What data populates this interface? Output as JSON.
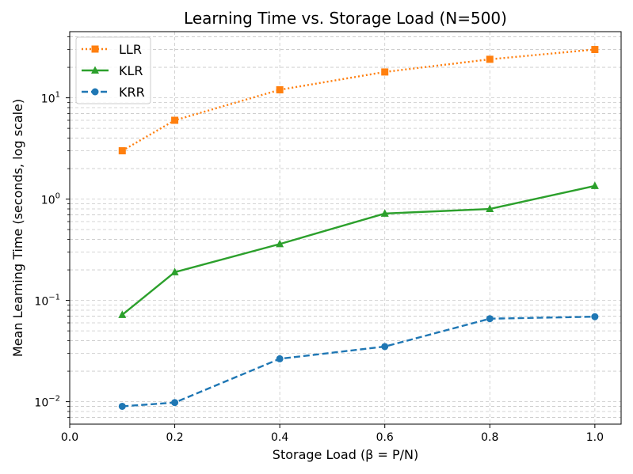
{
  "chart_data": {
    "type": "line",
    "title": "Learning Time vs. Storage Load (N=500)",
    "xlabel": "Storage Load (β = P/N)",
    "ylabel": "Mean Learning Time (seconds, log scale)",
    "xlim": [
      0.0,
      1.05
    ],
    "ylim": [
      0.006,
      45
    ],
    "yscale": "log",
    "grid": true,
    "legend_position": "upper-left",
    "x_ticks": [
      {
        "value": 0.0,
        "label": "0.0"
      },
      {
        "value": 0.2,
        "label": "0.2"
      },
      {
        "value": 0.4,
        "label": "0.4"
      },
      {
        "value": 0.6,
        "label": "0.6"
      },
      {
        "value": 0.8,
        "label": "0.8"
      },
      {
        "value": 1.0,
        "label": "1.0"
      }
    ],
    "y_ticks": [
      {
        "value": 0.01,
        "base": "10",
        "exp": "−2"
      },
      {
        "value": 0.1,
        "base": "10",
        "exp": "−1"
      },
      {
        "value": 1,
        "base": "10",
        "exp": "0"
      },
      {
        "value": 10,
        "base": "10",
        "exp": "1"
      }
    ],
    "x": [
      0.1,
      0.2,
      0.4,
      0.6,
      0.8,
      1.0
    ],
    "series": [
      {
        "name": "LLR",
        "color": "#ff7f0e",
        "marker": "square",
        "linestyle": "dotted",
        "values": [
          3.0,
          6.0,
          12.0,
          18.0,
          24.0,
          30.0
        ]
      },
      {
        "name": "KLR",
        "color": "#2ca02c",
        "marker": "triangle",
        "linestyle": "solid",
        "values": [
          0.072,
          0.19,
          0.36,
          0.72,
          0.8,
          1.35
        ]
      },
      {
        "name": "KRR",
        "color": "#1f77b4",
        "marker": "circle",
        "linestyle": "dashed",
        "values": [
          0.009,
          0.0098,
          0.0265,
          0.035,
          0.066,
          0.069
        ]
      }
    ]
  }
}
